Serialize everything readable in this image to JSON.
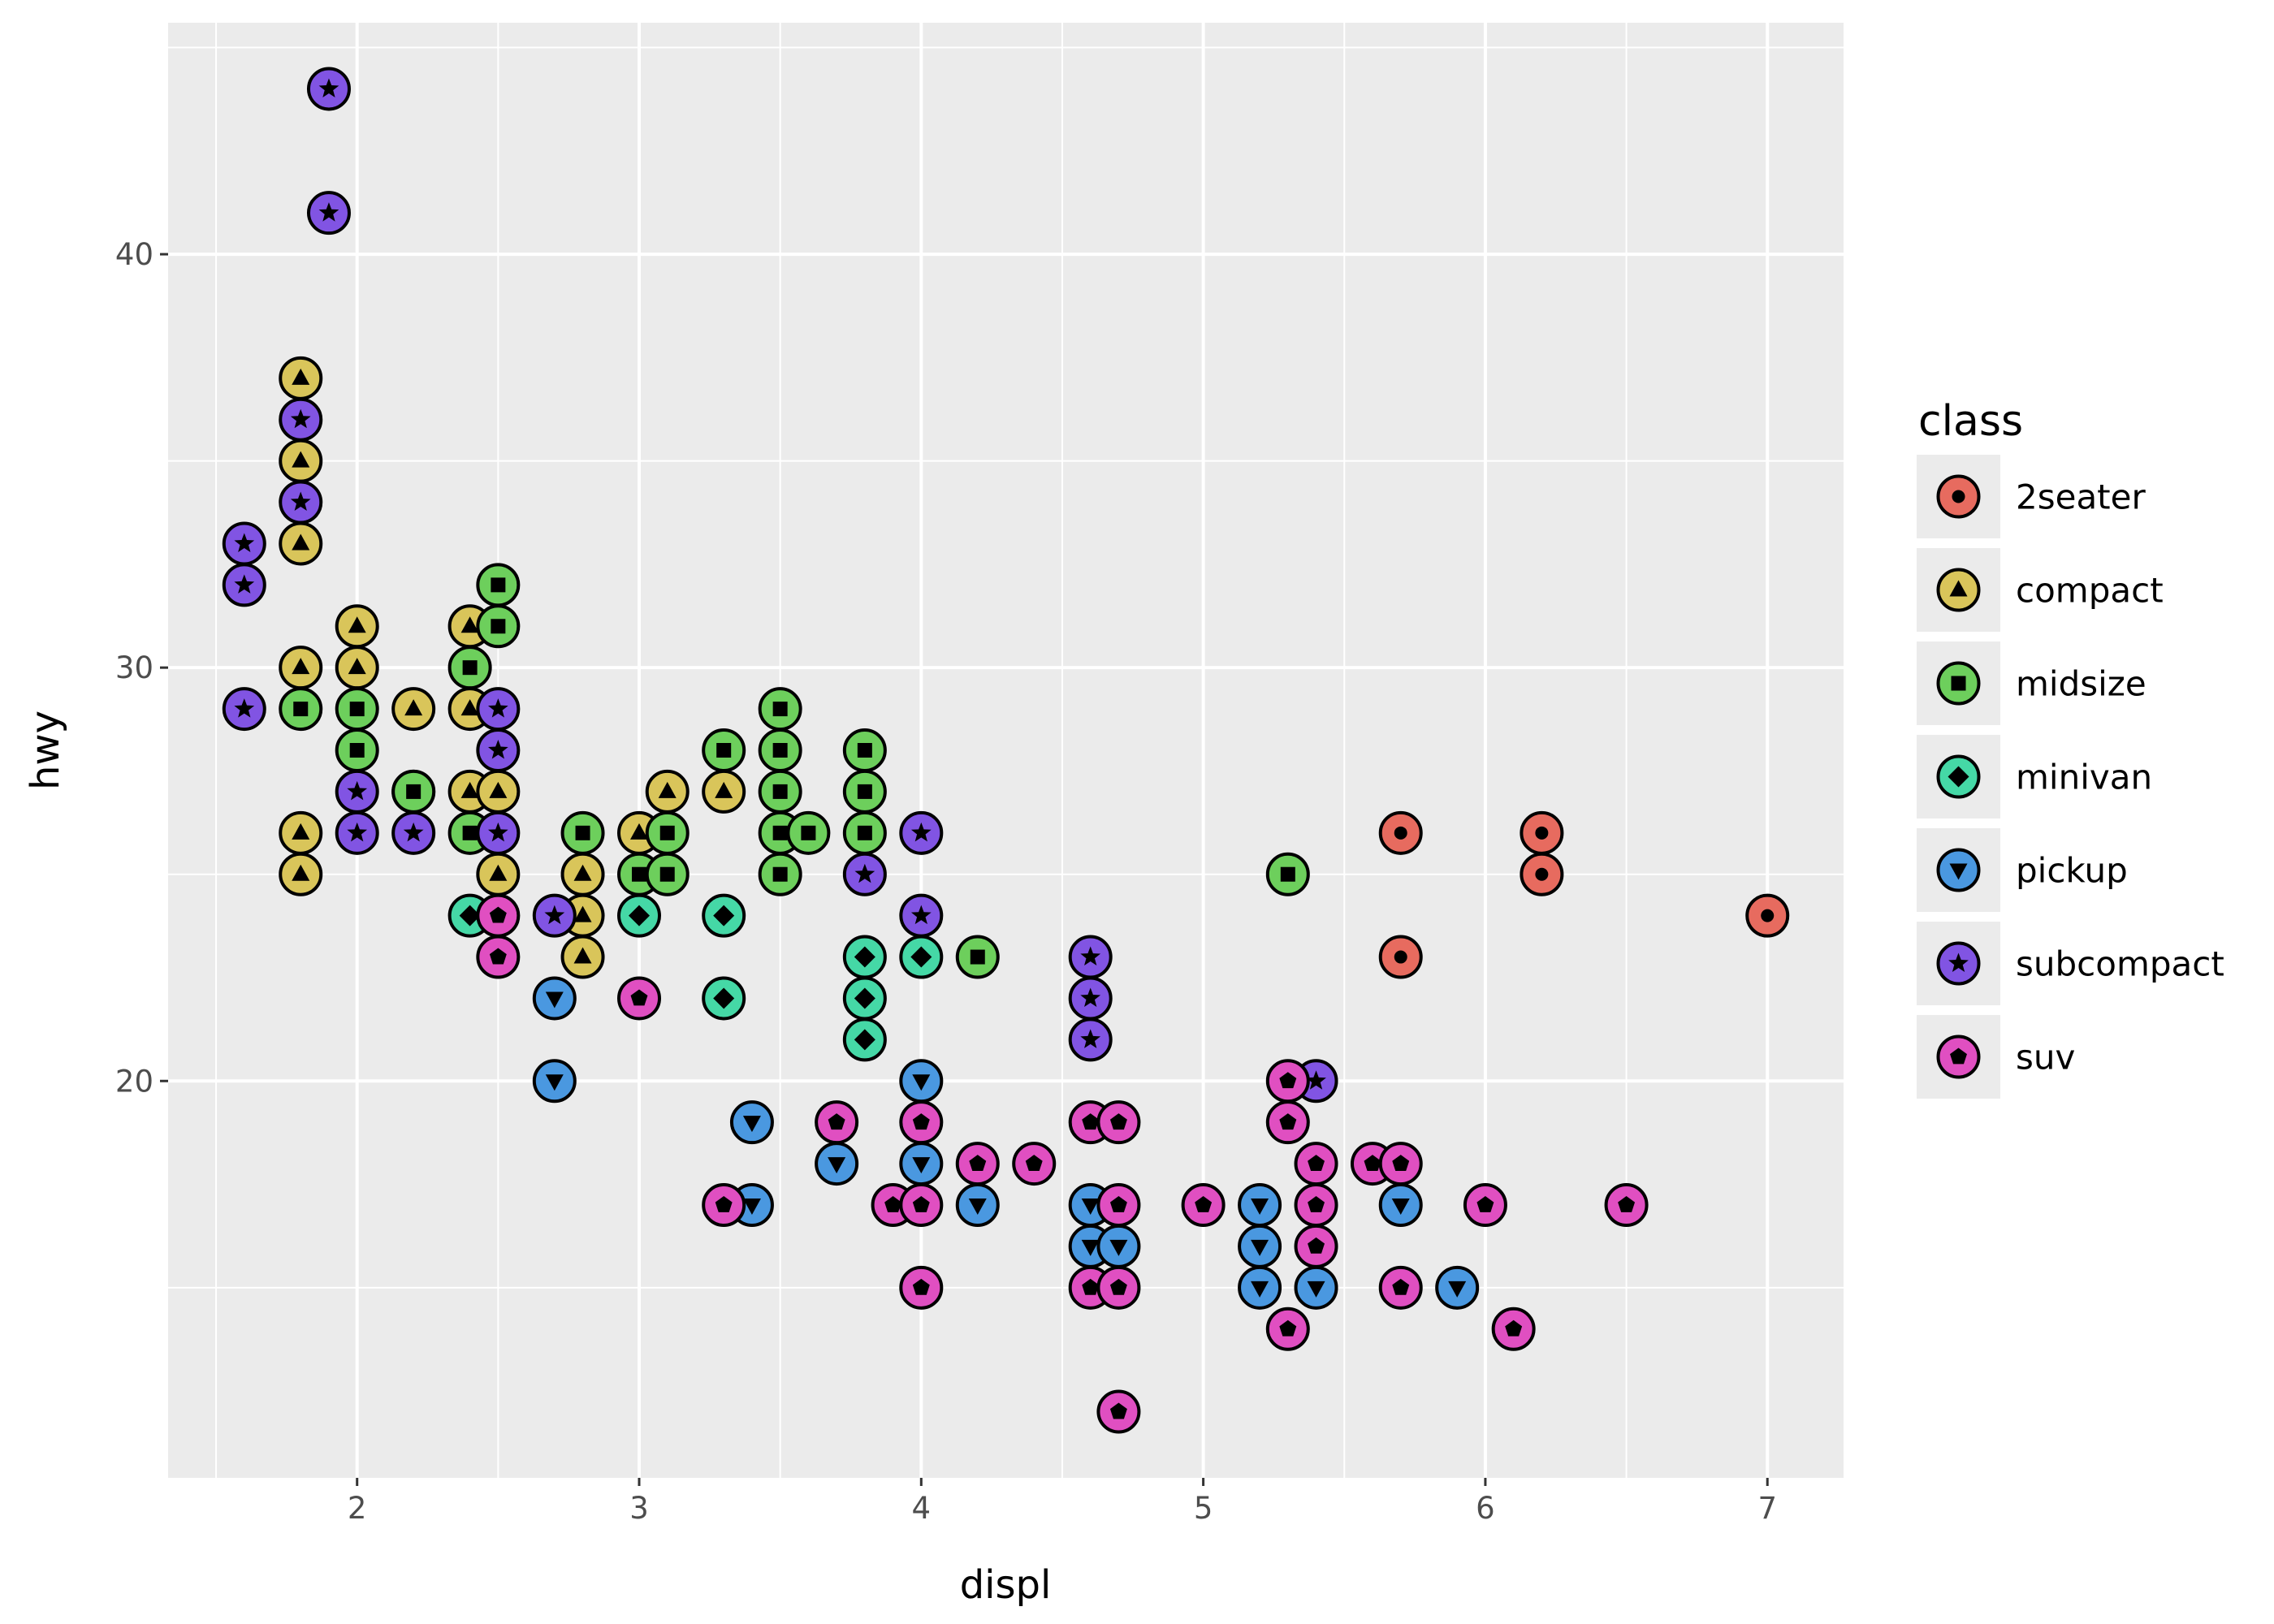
{
  "chart_data": {
    "type": "scatter",
    "xlabel": "displ",
    "ylabel": "hwy",
    "xlim": [
      1.33,
      7.27
    ],
    "ylim": [
      10.4,
      45.6
    ],
    "xticks": [
      2,
      3,
      4,
      5,
      6,
      7
    ],
    "yticks": [
      20,
      30,
      40
    ],
    "x_tick_labels": [
      "2",
      "3",
      "4",
      "5",
      "6",
      "7"
    ],
    "y_tick_labels": [
      "20",
      "30",
      "40"
    ],
    "grid": true,
    "legend": {
      "title": "class",
      "placement": "right",
      "entries": [
        {
          "name": "2seater",
          "color": "#E76B5F",
          "shape": "circle"
        },
        {
          "name": "compact",
          "color": "#D9C55A",
          "shape": "triangle-up"
        },
        {
          "name": "midsize",
          "color": "#6DCF5C",
          "shape": "square"
        },
        {
          "name": "minivan",
          "color": "#45D8A6",
          "shape": "diamond"
        },
        {
          "name": "pickup",
          "color": "#4A98E0",
          "shape": "triangle-down"
        },
        {
          "name": "subcompact",
          "color": "#8154E3",
          "shape": "star"
        },
        {
          "name": "suv",
          "color": "#E04FC1",
          "shape": "pentagon"
        }
      ]
    },
    "series": [
      {
        "name": "2seater",
        "points": [
          [
            5.7,
            26
          ],
          [
            5.7,
            23
          ],
          [
            6.2,
            26
          ],
          [
            6.2,
            25
          ],
          [
            7.0,
            24
          ]
        ]
      },
      {
        "name": "compact",
        "points": [
          [
            1.8,
            37
          ],
          [
            1.8,
            35
          ],
          [
            1.8,
            33
          ],
          [
            1.8,
            30
          ],
          [
            1.8,
            26
          ],
          [
            1.8,
            25
          ],
          [
            2.0,
            31
          ],
          [
            2.0,
            30
          ],
          [
            2.2,
            29
          ],
          [
            2.2,
            27
          ],
          [
            2.4,
            31
          ],
          [
            2.4,
            29
          ],
          [
            2.4,
            27
          ],
          [
            2.5,
            27
          ],
          [
            2.5,
            25
          ],
          [
            2.8,
            25
          ],
          [
            2.8,
            24
          ],
          [
            2.8,
            23
          ],
          [
            3.0,
            26
          ],
          [
            3.1,
            27
          ],
          [
            3.3,
            27
          ]
        ]
      },
      {
        "name": "midsize",
        "points": [
          [
            1.8,
            29
          ],
          [
            2.0,
            29
          ],
          [
            2.0,
            28
          ],
          [
            2.2,
            27
          ],
          [
            2.4,
            30
          ],
          [
            2.4,
            26
          ],
          [
            2.5,
            32
          ],
          [
            2.5,
            31
          ],
          [
            2.8,
            26
          ],
          [
            3.0,
            25
          ],
          [
            3.1,
            26
          ],
          [
            3.1,
            25
          ],
          [
            3.3,
            28
          ],
          [
            3.5,
            29
          ],
          [
            3.5,
            28
          ],
          [
            3.5,
            27
          ],
          [
            3.5,
            26
          ],
          [
            3.5,
            25
          ],
          [
            3.6,
            26
          ],
          [
            3.8,
            28
          ],
          [
            3.8,
            27
          ],
          [
            3.8,
            26
          ],
          [
            4.2,
            23
          ],
          [
            5.3,
            25
          ]
        ]
      },
      {
        "name": "minivan",
        "points": [
          [
            2.4,
            24
          ],
          [
            3.0,
            24
          ],
          [
            3.3,
            24
          ],
          [
            3.3,
            22
          ],
          [
            3.8,
            23
          ],
          [
            3.8,
            22
          ],
          [
            3.8,
            21
          ],
          [
            4.0,
            23
          ]
        ]
      },
      {
        "name": "pickup",
        "points": [
          [
            2.7,
            22
          ],
          [
            2.7,
            20
          ],
          [
            3.4,
            19
          ],
          [
            3.4,
            17
          ],
          [
            3.7,
            18
          ],
          [
            4.0,
            20
          ],
          [
            4.0,
            18
          ],
          [
            4.2,
            17
          ],
          [
            4.6,
            17
          ],
          [
            4.6,
            16
          ],
          [
            4.7,
            16
          ],
          [
            5.2,
            17
          ],
          [
            5.2,
            16
          ],
          [
            5.2,
            15
          ],
          [
            5.4,
            15
          ],
          [
            5.7,
            17
          ],
          [
            5.9,
            15
          ]
        ]
      },
      {
        "name": "subcompact",
        "points": [
          [
            1.6,
            33
          ],
          [
            1.6,
            32
          ],
          [
            1.6,
            29
          ],
          [
            1.8,
            36
          ],
          [
            1.8,
            34
          ],
          [
            1.9,
            44
          ],
          [
            1.9,
            41
          ],
          [
            2.0,
            27
          ],
          [
            2.0,
            26
          ],
          [
            2.2,
            26
          ],
          [
            2.5,
            29
          ],
          [
            2.5,
            28
          ],
          [
            2.5,
            26
          ],
          [
            2.7,
            24
          ],
          [
            3.8,
            25
          ],
          [
            4.0,
            26
          ],
          [
            4.0,
            24
          ],
          [
            4.6,
            23
          ],
          [
            4.6,
            22
          ],
          [
            4.6,
            21
          ],
          [
            5.4,
            20
          ]
        ]
      },
      {
        "name": "suv",
        "points": [
          [
            2.5,
            24
          ],
          [
            2.5,
            23
          ],
          [
            3.0,
            22
          ],
          [
            3.3,
            17
          ],
          [
            3.7,
            19
          ],
          [
            3.9,
            17
          ],
          [
            4.0,
            19
          ],
          [
            4.0,
            17
          ],
          [
            4.0,
            15
          ],
          [
            4.2,
            18
          ],
          [
            4.4,
            18
          ],
          [
            4.6,
            19
          ],
          [
            4.6,
            15
          ],
          [
            4.7,
            19
          ],
          [
            4.7,
            17
          ],
          [
            4.7,
            15
          ],
          [
            4.7,
            12
          ],
          [
            5.0,
            17
          ],
          [
            5.3,
            20
          ],
          [
            5.3,
            19
          ],
          [
            5.3,
            14
          ],
          [
            5.4,
            18
          ],
          [
            5.4,
            17
          ],
          [
            5.4,
            16
          ],
          [
            5.6,
            18
          ],
          [
            5.7,
            18
          ],
          [
            5.7,
            15
          ],
          [
            6.0,
            17
          ],
          [
            6.1,
            14
          ],
          [
            6.5,
            17
          ]
        ]
      }
    ]
  }
}
